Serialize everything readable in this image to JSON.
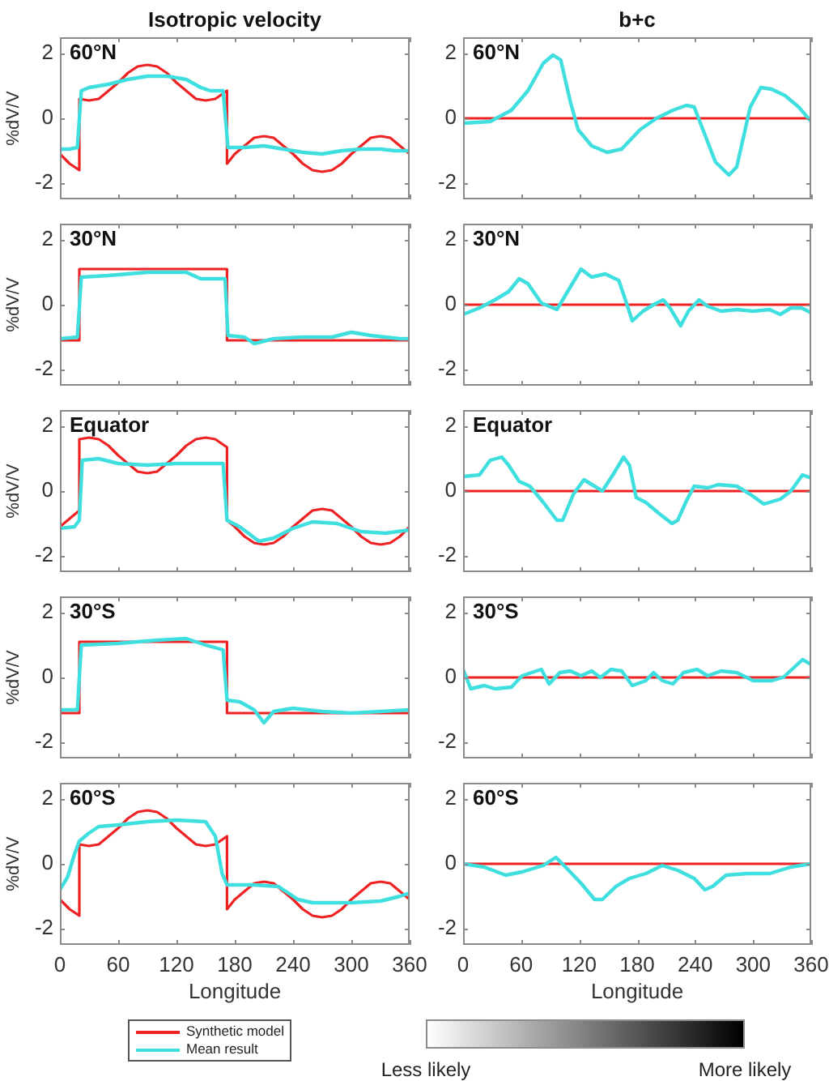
{
  "chart_data": [
    {
      "type": "line",
      "title": "Isotropic velocity",
      "ylabel": "%dV/V",
      "annotations": [
        "60°N"
      ],
      "xlim": [
        0,
        360
      ],
      "xticks": [
        0,
        60,
        120,
        180,
        240,
        300,
        360
      ],
      "ylim": [
        -2.5,
        2.5
      ],
      "yticks": [
        -2,
        0,
        2
      ],
      "tick_labels": "y",
      "marker": "none",
      "series": [
        {
          "color": "#ee2222",
          "x": [
            0,
            10,
            20,
            20,
            30,
            40,
            50,
            60,
            70,
            80,
            90,
            100,
            110,
            120,
            130,
            140,
            150,
            160,
            172,
            172,
            180,
            190,
            200,
            210,
            220,
            230,
            240,
            250,
            260,
            270,
            280,
            290,
            300,
            310,
            320,
            330,
            340,
            350,
            360
          ],
          "values": [
            -1.1,
            -1.4,
            -1.6,
            0.6,
            0.55,
            0.6,
            0.85,
            1.1,
            1.4,
            1.6,
            1.65,
            1.6,
            1.4,
            1.1,
            0.85,
            0.6,
            0.55,
            0.6,
            0.85,
            -1.4,
            -1.1,
            -0.85,
            -0.6,
            -0.55,
            -0.6,
            -0.85,
            -1.1,
            -1.4,
            -1.6,
            -1.65,
            -1.6,
            -1.4,
            -1.1,
            -0.85,
            -0.6,
            -0.55,
            -0.6,
            -0.85,
            -1.1
          ]
        },
        {
          "color": "#3fdfe0",
          "x": [
            0,
            10,
            18,
            22,
            30,
            50,
            70,
            90,
            110,
            130,
            145,
            155,
            168,
            173,
            190,
            210,
            230,
            250,
            270,
            290,
            310,
            330,
            345,
            360
          ],
          "values": [
            -0.95,
            -0.95,
            -0.9,
            0.85,
            0.95,
            1.05,
            1.2,
            1.3,
            1.3,
            1.2,
            0.95,
            0.85,
            0.85,
            -0.9,
            -0.9,
            -0.85,
            -0.95,
            -1.05,
            -1.1,
            -1.0,
            -0.95,
            -0.95,
            -1.0,
            -1.0
          ]
        }
      ]
    },
    {
      "type": "line",
      "title": "b+c",
      "annotations": [
        "60°N"
      ],
      "xlim": [
        0,
        360
      ],
      "xticks": [
        0,
        60,
        120,
        180,
        240,
        300,
        360
      ],
      "ylim": [
        -2.5,
        2.5
      ],
      "yticks": [
        -2,
        0,
        2
      ],
      "tick_labels": "y",
      "marker": "none",
      "series": [
        {
          "color": "#ee2222",
          "x": [
            0,
            360
          ],
          "values": [
            0,
            0
          ]
        },
        {
          "color": "#3fdfe0",
          "x": [
            0,
            28,
            50,
            67,
            83,
            93,
            101,
            111,
            119,
            133,
            149,
            164,
            183,
            200,
            217,
            231,
            239,
            250,
            261,
            275,
            283,
            297,
            308,
            319,
            333,
            347,
            360
          ],
          "values": [
            -0.15,
            -0.1,
            0.25,
            0.85,
            1.7,
            1.95,
            1.8,
            0.5,
            -0.35,
            -0.85,
            -1.05,
            -0.95,
            -0.35,
            0,
            0.25,
            0.4,
            0.35,
            -0.5,
            -1.35,
            -1.75,
            -1.5,
            0.35,
            0.95,
            0.9,
            0.7,
            0.35,
            -0.1
          ]
        }
      ]
    },
    {
      "type": "line",
      "ylabel": "%dV/V",
      "annotations": [
        "30°N"
      ],
      "xlim": [
        0,
        360
      ],
      "xticks": [
        0,
        60,
        120,
        180,
        240,
        300,
        360
      ],
      "ylim": [
        -2.5,
        2.5
      ],
      "yticks": [
        -2,
        0,
        2
      ],
      "tick_labels": "y",
      "marker": "none",
      "series": [
        {
          "color": "#ee2222",
          "x": [
            0,
            20,
            20,
            172,
            172,
            360
          ],
          "values": [
            -1.1,
            -1.1,
            1.1,
            1.1,
            -1.1,
            -1.1
          ]
        },
        {
          "color": "#3fdfe0",
          "x": [
            0,
            18,
            22,
            50,
            90,
            130,
            145,
            170,
            173,
            190,
            200,
            220,
            250,
            280,
            300,
            320,
            350,
            360
          ],
          "values": [
            -1.05,
            -1.0,
            0.85,
            0.9,
            1.0,
            1.0,
            0.8,
            0.8,
            -0.95,
            -1.0,
            -1.2,
            -1.05,
            -1.0,
            -1.0,
            -0.85,
            -0.95,
            -1.05,
            -1.05
          ]
        }
      ]
    },
    {
      "type": "line",
      "annotations": [
        "30°N"
      ],
      "xlim": [
        0,
        360
      ],
      "xticks": [
        0,
        60,
        120,
        180,
        240,
        300,
        360
      ],
      "ylim": [
        -2.5,
        2.5
      ],
      "yticks": [
        -2,
        0,
        2
      ],
      "tick_labels": "y",
      "marker": "none",
      "series": [
        {
          "color": "#ee2222",
          "x": [
            0,
            360
          ],
          "values": [
            0,
            0
          ]
        },
        {
          "color": "#3fdfe0",
          "x": [
            0,
            17,
            33,
            47,
            58,
            67,
            81,
            97,
            108,
            122,
            133,
            147,
            161,
            169,
            175,
            186,
            197,
            207,
            214,
            225,
            233,
            244,
            253,
            267,
            283,
            300,
            317,
            328,
            339,
            350,
            360
          ],
          "values": [
            -0.3,
            -0.1,
            0.15,
            0.4,
            0.8,
            0.65,
            0.05,
            -0.15,
            0.4,
            1.1,
            0.85,
            0.95,
            0.75,
            0.05,
            -0.5,
            -0.2,
            0,
            0.15,
            -0.1,
            -0.65,
            -0.2,
            0.15,
            -0.05,
            -0.2,
            -0.15,
            -0.2,
            -0.15,
            -0.3,
            -0.1,
            -0.1,
            -0.25
          ]
        }
      ]
    },
    {
      "type": "line",
      "ylabel": "%dV/V",
      "annotations": [
        "Equator"
      ],
      "xlim": [
        0,
        360
      ],
      "xticks": [
        0,
        60,
        120,
        180,
        240,
        300,
        360
      ],
      "ylim": [
        -2.5,
        2.5
      ],
      "yticks": [
        -2,
        0,
        2
      ],
      "tick_labels": "y",
      "marker": "none",
      "series": [
        {
          "color": "#ee2222",
          "x": [
            0,
            10,
            20,
            20,
            30,
            40,
            50,
            60,
            70,
            80,
            90,
            100,
            110,
            120,
            130,
            140,
            150,
            160,
            172,
            172,
            180,
            190,
            200,
            210,
            220,
            230,
            240,
            250,
            260,
            270,
            280,
            290,
            300,
            310,
            320,
            330,
            340,
            350,
            360
          ],
          "values": [
            -1.1,
            -0.85,
            -0.6,
            1.6,
            1.65,
            1.6,
            1.4,
            1.1,
            0.85,
            0.6,
            0.55,
            0.6,
            0.85,
            1.1,
            1.4,
            1.6,
            1.65,
            1.6,
            1.35,
            -0.9,
            -1.1,
            -1.4,
            -1.6,
            -1.65,
            -1.6,
            -1.4,
            -1.1,
            -0.85,
            -0.6,
            -0.55,
            -0.6,
            -0.85,
            -1.1,
            -1.4,
            -1.6,
            -1.65,
            -1.6,
            -1.4,
            -1.1
          ]
        },
        {
          "color": "#3fdfe0",
          "x": [
            0,
            15,
            20,
            23,
            40,
            60,
            90,
            120,
            150,
            168,
            172,
            185,
            205,
            220,
            240,
            260,
            285,
            310,
            335,
            360
          ],
          "values": [
            -1.15,
            -1.1,
            -0.9,
            0.95,
            1.0,
            0.85,
            0.8,
            0.85,
            0.85,
            0.85,
            -0.9,
            -1.1,
            -1.55,
            -1.45,
            -1.15,
            -0.95,
            -1.0,
            -1.25,
            -1.3,
            -1.2
          ]
        }
      ]
    },
    {
      "type": "line",
      "annotations": [
        "Equator"
      ],
      "xlim": [
        0,
        360
      ],
      "xticks": [
        0,
        60,
        120,
        180,
        240,
        300,
        360
      ],
      "ylim": [
        -2.5,
        2.5
      ],
      "yticks": [
        -2,
        0,
        2
      ],
      "tick_labels": "y",
      "marker": "none",
      "series": [
        {
          "color": "#ee2222",
          "x": [
            0,
            360
          ],
          "values": [
            0,
            0
          ]
        },
        {
          "color": "#3fdfe0",
          "x": [
            0,
            17,
            28,
            40,
            47,
            58,
            69,
            83,
            97,
            103,
            114,
            125,
            136,
            144,
            156,
            166,
            172,
            179,
            189,
            203,
            216,
            222,
            231,
            239,
            253,
            264,
            283,
            297,
            311,
            328,
            339,
            351,
            360
          ],
          "values": [
            0.45,
            0.5,
            0.95,
            1.05,
            0.8,
            0.3,
            0.15,
            -0.35,
            -0.9,
            -0.9,
            -0.1,
            0.35,
            0.15,
            0,
            0.55,
            1.05,
            0.8,
            -0.2,
            -0.35,
            -0.7,
            -1.0,
            -0.9,
            -0.3,
            0.15,
            0.1,
            0.2,
            0.15,
            -0.1,
            -0.4,
            -0.25,
            0,
            0.5,
            0.4
          ]
        }
      ]
    },
    {
      "type": "line",
      "ylabel": "%dV/V",
      "annotations": [
        "30°S"
      ],
      "xlim": [
        0,
        360
      ],
      "xticks": [
        0,
        60,
        120,
        180,
        240,
        300,
        360
      ],
      "ylim": [
        -2.5,
        2.5
      ],
      "yticks": [
        -2,
        0,
        2
      ],
      "tick_labels": "y",
      "marker": "none",
      "series": [
        {
          "color": "#ee2222",
          "x": [
            0,
            20,
            20,
            172,
            172,
            360
          ],
          "values": [
            -1.1,
            -1.1,
            1.1,
            1.1,
            -1.1,
            -1.1
          ]
        },
        {
          "color": "#3fdfe0",
          "x": [
            0,
            18,
            22,
            60,
            100,
            130,
            150,
            168,
            172,
            185,
            200,
            210,
            220,
            240,
            270,
            300,
            330,
            360
          ],
          "values": [
            -1.0,
            -1.0,
            1.0,
            1.05,
            1.15,
            1.2,
            1.0,
            0.85,
            -0.7,
            -0.75,
            -1.0,
            -1.4,
            -1.05,
            -0.95,
            -1.05,
            -1.1,
            -1.05,
            -1.0
          ]
        }
      ]
    },
    {
      "type": "line",
      "annotations": [
        "30°S"
      ],
      "xlim": [
        0,
        360
      ],
      "xticks": [
        0,
        60,
        120,
        180,
        240,
        300,
        360
      ],
      "ylim": [
        -2.5,
        2.5
      ],
      "yticks": [
        -2,
        0,
        2
      ],
      "tick_labels": "y",
      "marker": "none",
      "series": [
        {
          "color": "#ee2222",
          "x": [
            0,
            360
          ],
          "values": [
            0,
            0
          ]
        },
        {
          "color": "#3fdfe0",
          "x": [
            0,
            8,
            22,
            33,
            50,
            61,
            81,
            89,
            100,
            111,
            122,
            133,
            142,
            153,
            164,
            175,
            189,
            197,
            206,
            217,
            228,
            242,
            253,
            267,
            283,
            300,
            319,
            331,
            342,
            351,
            360
          ],
          "values": [
            0.25,
            -0.35,
            -0.25,
            -0.35,
            -0.3,
            0.05,
            0.25,
            -0.2,
            0.15,
            0.2,
            0.05,
            0.2,
            0,
            0.25,
            0.2,
            -0.25,
            -0.1,
            0.15,
            -0.1,
            -0.2,
            0.15,
            0.25,
            0.05,
            0.2,
            0.15,
            -0.1,
            -0.1,
            0,
            0.3,
            0.55,
            0.4
          ]
        }
      ]
    },
    {
      "type": "line",
      "xlabel": "Longitude",
      "ylabel": "%dV/V",
      "annotations": [
        "60°S"
      ],
      "xlim": [
        0,
        360
      ],
      "xticks": [
        0,
        60,
        120,
        180,
        240,
        300,
        360
      ],
      "ylim": [
        -2.5,
        2.5
      ],
      "yticks": [
        -2,
        0,
        2
      ],
      "marker": "none",
      "legend": "bottom",
      "series": [
        {
          "name": "Synthetic model",
          "color": "#ee2222",
          "x": [
            0,
            10,
            20,
            20,
            30,
            40,
            50,
            60,
            70,
            80,
            90,
            100,
            110,
            120,
            130,
            140,
            150,
            160,
            172,
            172,
            180,
            190,
            200,
            210,
            220,
            230,
            240,
            250,
            260,
            270,
            280,
            290,
            300,
            310,
            320,
            330,
            340,
            350,
            360
          ],
          "values": [
            -1.1,
            -1.4,
            -1.6,
            0.6,
            0.55,
            0.6,
            0.85,
            1.1,
            1.4,
            1.6,
            1.65,
            1.6,
            1.4,
            1.1,
            0.85,
            0.6,
            0.55,
            0.6,
            0.85,
            -1.4,
            -1.1,
            -0.85,
            -0.6,
            -0.55,
            -0.6,
            -0.85,
            -1.1,
            -1.4,
            -1.6,
            -1.65,
            -1.6,
            -1.4,
            -1.1,
            -0.85,
            -0.6,
            -0.55,
            -0.6,
            -0.85,
            -1.1
          ]
        },
        {
          "name": "Mean result",
          "color": "#3fdfe0",
          "x": [
            0,
            8,
            15,
            20,
            30,
            40,
            60,
            90,
            120,
            150,
            160,
            167,
            172,
            200,
            225,
            245,
            260,
            300,
            330,
            350,
            360
          ],
          "values": [
            -0.8,
            -0.4,
            0.3,
            0.7,
            0.95,
            1.15,
            1.2,
            1.3,
            1.35,
            1.3,
            0.85,
            -0.3,
            -0.65,
            -0.65,
            -0.7,
            -1.1,
            -1.2,
            -1.2,
            -1.15,
            -1.0,
            -0.9
          ]
        }
      ]
    },
    {
      "type": "line",
      "xlabel": "Longitude",
      "annotations": [
        "60°S"
      ],
      "xlim": [
        0,
        360
      ],
      "xticks": [
        0,
        60,
        120,
        180,
        240,
        300,
        360
      ],
      "ylim": [
        -2.5,
        2.5
      ],
      "yticks": [
        -2,
        0,
        2
      ],
      "marker": "none",
      "series": [
        {
          "color": "#ee2222",
          "x": [
            0,
            360
          ],
          "values": [
            0,
            0
          ]
        },
        {
          "color": "#3fdfe0",
          "x": [
            0,
            22,
            44,
            61,
            83,
            96,
            106,
            122,
            136,
            144,
            158,
            172,
            189,
            206,
            222,
            239,
            250,
            258,
            272,
            294,
            317,
            339,
            360
          ],
          "values": [
            0,
            -0.1,
            -0.35,
            -0.25,
            -0.05,
            0.2,
            -0.1,
            -0.6,
            -1.1,
            -1.1,
            -0.7,
            -0.45,
            -0.3,
            -0.05,
            -0.2,
            -0.45,
            -0.8,
            -0.7,
            -0.35,
            -0.3,
            -0.3,
            -0.1,
            0
          ]
        }
      ]
    },
    {
      "type": "other",
      "annotations": [
        "Less likely",
        "More likely"
      ]
    }
  ]
}
